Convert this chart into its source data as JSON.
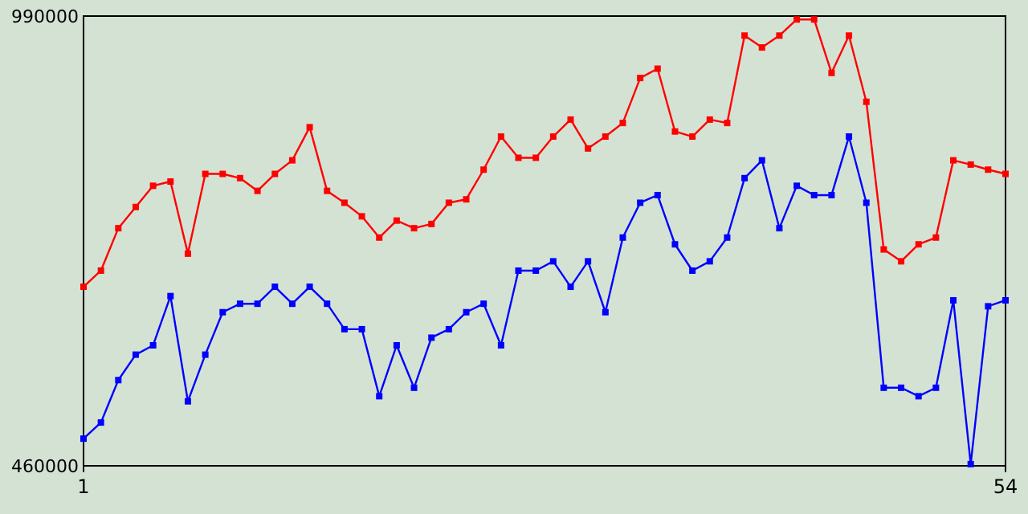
{
  "chart_data": {
    "type": "line",
    "x": [
      1,
      2,
      3,
      4,
      5,
      6,
      7,
      8,
      9,
      10,
      11,
      12,
      13,
      14,
      15,
      16,
      17,
      18,
      19,
      20,
      21,
      22,
      23,
      24,
      25,
      26,
      27,
      28,
      29,
      30,
      31,
      32,
      33,
      34,
      35,
      36,
      37,
      38,
      39,
      40,
      41,
      42,
      43,
      44,
      45,
      46,
      47,
      48,
      49,
      50,
      51,
      52,
      53,
      54
    ],
    "xlim": [
      1,
      54
    ],
    "xticks": [
      1,
      54
    ],
    "ylim": [
      460000,
      990000
    ],
    "yticks": [
      460000,
      990000
    ],
    "marker": "square",
    "line_style": "solid",
    "series": [
      {
        "color": "#ff0000",
        "values": [
          671000,
          690000,
          740000,
          765000,
          790000,
          795000,
          710000,
          804000,
          804000,
          799000,
          784000,
          804000,
          820000,
          859000,
          784000,
          770000,
          754000,
          729000,
          749000,
          740000,
          745000,
          770000,
          774000,
          809000,
          848000,
          823000,
          823000,
          848000,
          868000,
          834000,
          848000,
          864000,
          917000,
          928000,
          854000,
          848000,
          868000,
          864000,
          967000,
          953000,
          967000,
          986000,
          986000,
          923000,
          967000,
          889000,
          715000,
          701000,
          721000,
          729000,
          820000,
          815000,
          809000,
          804000
        ]
      },
      {
        "color": "#0000ff",
        "values": [
          492000,
          511000,
          561000,
          591000,
          602000,
          660000,
          536000,
          591000,
          641000,
          651000,
          651000,
          671000,
          651000,
          671000,
          651000,
          621000,
          621000,
          542000,
          602000,
          552000,
          611000,
          621000,
          641000,
          651000,
          602000,
          690000,
          690000,
          701000,
          671000,
          701000,
          641000,
          729000,
          770000,
          779000,
          721000,
          690000,
          701000,
          729000,
          799000,
          820000,
          740000,
          790000,
          779000,
          779000,
          848000,
          770000,
          552000,
          552000,
          542000,
          552000,
          655000,
          462000,
          648000,
          655000
        ]
      }
    ]
  }
}
